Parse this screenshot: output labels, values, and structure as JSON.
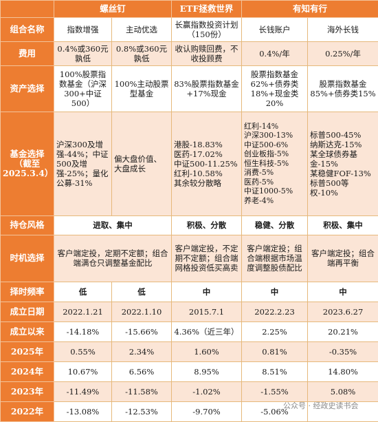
{
  "header": {
    "platforms": [
      "螺丝钉",
      "ETF拯救世界",
      "有知有行"
    ]
  },
  "rows": {
    "portfolio_name": {
      "label": "组合名称",
      "cells": [
        "指数增强",
        "主动优选",
        "长赢指数投资计划（150份）",
        "长钱账户",
        "海外长钱"
      ]
    },
    "fee": {
      "label": "费用",
      "cells": [
        "0.4%或360元孰低",
        "0.8%或360元孰低",
        "收认购赎回费，不收投顾费",
        "0.4%/年",
        "0.25%/年"
      ]
    },
    "asset_choice": {
      "label": "资产选择",
      "cells": [
        "100%股票指数基金（沪深300+中证500）",
        "100%主动股票型基金",
        "83%股票指数基金+17%现金",
        "股票指数基金62%+债券类18%+现金类20%",
        "股票指数基金85%+债券类15%"
      ]
    },
    "fund_choice": {
      "label": "基金选择（截至2025.3.4）",
      "cells": [
        "沪深300及增强-44%；中证500及增强-25%；量化公募-31%",
        "偏大盘价值、大盘成长",
        "港股-18.83%\n医药-17.02%\n中证500-11.25%\n红利-10.58%\n其余较分散略",
        "红利-14%\n沪深300-13%\n中证500-6%\n创业板指-5%\n恒生科技-5%\n消费-5%\n医药-5%\n中证1000-5%\n养老-4%",
        "标普500-45%\n纳斯达克-15%\n某全球债券基金-15%\n某稳健FOF-13%\n标普500等权-10%"
      ]
    },
    "holding_style": {
      "label": "持仓风格",
      "cells": [
        "进取、集中",
        "积极、分散",
        "稳健、分散",
        "积极、集中"
      ]
    },
    "timing": {
      "label": "时机选择",
      "cells": [
        "客户端定投，定期不定额；组合端满仓只调整基金配比",
        "客户端定投，不定期不定额；组合端网格投资低买高卖",
        "客户端定投；组合端根据市场温度调整股债配比",
        "客户端定投；组合端再平衡"
      ]
    },
    "timing_freq": {
      "label": "择时频率",
      "cells": [
        "低",
        "低",
        "中",
        "中",
        "中"
      ]
    },
    "inception_date": {
      "label": "成立日期",
      "cells": [
        "2022.1.21",
        "2022.1.10",
        "2015.7.1",
        "2022.2.23",
        "2023.6.27"
      ]
    },
    "since_inception": {
      "label": "成立以来",
      "cells": [
        "-14.18%",
        "-15.66%",
        "4.36%（近三年）",
        "2.25%",
        "20.21%"
      ]
    },
    "y2025": {
      "label": "2025年",
      "cells": [
        "0.55%",
        "2.34%",
        "1.60%",
        "0.81%",
        "-0.35%"
      ]
    },
    "y2024": {
      "label": "2024年",
      "cells": [
        "10.67%",
        "6.56%",
        "8.95%",
        "8.51%",
        "14.80%"
      ]
    },
    "y2023": {
      "label": "2023年",
      "cells": [
        "-11.49%",
        "-11.58%",
        "-1.02%",
        "-1.55%",
        "5.08%"
      ]
    },
    "y2022": {
      "label": "2022年",
      "cells": [
        "-13.08%",
        "-12.53%",
        "-9.70%",
        "-5.06%",
        ""
      ]
    }
  },
  "watermark": "公众号 · 经政史读书会"
}
